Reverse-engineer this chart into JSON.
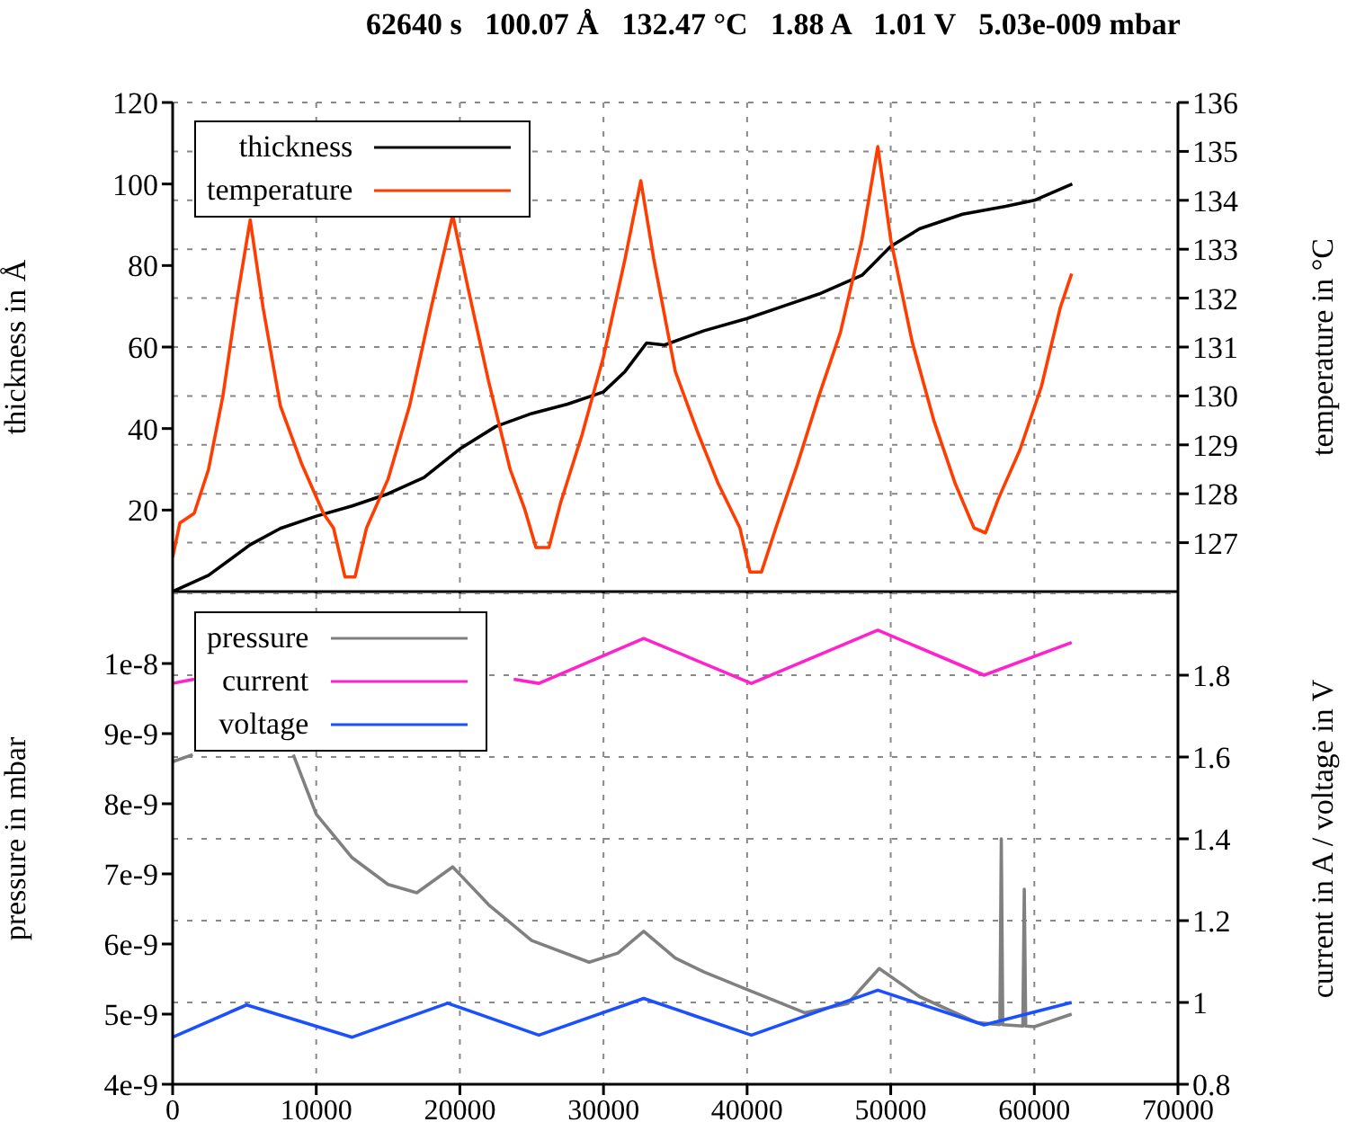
{
  "chart_data": [
    {
      "type": "line",
      "title": "62640 s   100.07 Å   132.47 °C   1.88 A   1.01 V   5.03e-009 mbar",
      "ylabel": "thickness in Å",
      "y2label": "temperature in °C",
      "xlim": [
        0,
        70000
      ],
      "xticks": [
        0,
        10000,
        20000,
        30000,
        40000,
        50000,
        60000,
        70000
      ],
      "ylim": [
        0,
        120
      ],
      "yticks": [
        20,
        40,
        60,
        80,
        100,
        120
      ],
      "y2lim": [
        126,
        136
      ],
      "y2ticks": [
        127,
        128,
        129,
        130,
        131,
        132,
        133,
        134,
        135,
        136
      ],
      "grid": true,
      "legend": "top left",
      "tick_labels": "y",
      "series": [
        {
          "name": "thickness",
          "color": "#000000",
          "x": [
            0,
            2500,
            5400,
            7500,
            10000,
            12500,
            15000,
            17500,
            20000,
            22500,
            25000,
            27500,
            30000,
            31500,
            33000,
            34250,
            37000,
            40000,
            42500,
            45000,
            48000,
            50000,
            52000,
            55000,
            58000,
            60000,
            62640
          ],
          "values": [
            0,
            4,
            11.5,
            15.5,
            18.5,
            21,
            24,
            28,
            35,
            40.5,
            43.7,
            46,
            49,
            54,
            61,
            60.5,
            64,
            67,
            70,
            73,
            77.6,
            84.7,
            89,
            92.6,
            94.5,
            96,
            100
          ]
        },
        {
          "name": "temperature",
          "color": "#ff3d00",
          "axis": "y2",
          "x": [
            0,
            500,
            1500,
            2500,
            3500,
            4500,
            5400,
            6300,
            7500,
            9000,
            10500,
            11200,
            12000,
            12700,
            13500,
            15000,
            16500,
            18000,
            19500,
            20500,
            22000,
            23500,
            24500,
            25300,
            26200,
            27000,
            28500,
            30000,
            31500,
            32600,
            33500,
            35000,
            36500,
            38000,
            39500,
            40200,
            41000,
            42000,
            43500,
            45000,
            46500,
            48000,
            49100,
            50000,
            51500,
            53000,
            54500,
            55800,
            56600,
            57500,
            59000,
            60500,
            61800,
            62600
          ],
          "values": [
            126.7,
            127.4,
            127.6,
            128.5,
            130,
            132,
            133.6,
            131.8,
            129.8,
            128.6,
            127.6,
            127.3,
            126.3,
            126.3,
            127.3,
            128.3,
            129.8,
            131.8,
            133.7,
            132.3,
            130.3,
            128.5,
            127.7,
            126.9,
            126.9,
            127.8,
            129.2,
            130.8,
            132.8,
            134.4,
            132.8,
            130.5,
            129.3,
            128.2,
            127.3,
            126.4,
            126.4,
            127.3,
            128.6,
            130,
            131.3,
            133.2,
            135.1,
            133.2,
            131.1,
            129.5,
            128.2,
            127.3,
            127.2,
            127.9,
            128.9,
            130.2,
            131.8,
            132.5
          ]
        }
      ]
    },
    {
      "type": "line",
      "ylabel": "pressure in mbar",
      "y2label": "current in A / voltage in V",
      "xlim": [
        0,
        70000
      ],
      "xticks": [
        0,
        10000,
        20000,
        30000,
        40000,
        50000,
        60000,
        70000
      ],
      "ylim": [
        4e-09,
        1.1e-08
      ],
      "yticks": [
        {
          "value": 4e-09,
          "label": "4e-9"
        },
        {
          "value": 5e-09,
          "label": "5e-9"
        },
        {
          "value": 6e-09,
          "label": "6e-9"
        },
        {
          "value": 7e-09,
          "label": "7e-9"
        },
        {
          "value": 8e-09,
          "label": "8e-9"
        },
        {
          "value": 9e-09,
          "label": "9e-9"
        },
        {
          "value": 1e-08,
          "label": "1e-8"
        }
      ],
      "y2lim": [
        0.8,
        2.0
      ],
      "y2ticks": [
        0.8,
        1,
        1.2,
        1.4,
        1.6,
        1.8
      ],
      "grid": true,
      "legend": "top left",
      "series": [
        {
          "name": "pressure",
          "color": "#808080",
          "x": [
            0,
            1400,
            1500,
            8400,
            10000,
            12500,
            15000,
            17000,
            19500,
            22000,
            25000,
            29000,
            31000,
            32800,
            35000,
            37000,
            40000,
            44000,
            47000,
            49200,
            52000,
            56000,
            57600,
            57700,
            57800,
            59200,
            59300,
            59400,
            60000,
            62600
          ],
          "values": [
            8.6e-09,
            8.7e-09,
            null,
            8.7e-09,
            7.85e-09,
            7.23e-09,
            6.85e-09,
            6.73e-09,
            7.1e-09,
            6.56e-09,
            6.05e-09,
            5.74e-09,
            5.87e-09,
            6.18e-09,
            5.8e-09,
            5.6e-09,
            5.35e-09,
            5.02e-09,
            5.15e-09,
            5.65e-09,
            5.25e-09,
            4.88e-09,
            4.85e-09,
            7.5e-09,
            4.85e-09,
            4.83e-09,
            6.78e-09,
            4.83e-09,
            4.82e-09,
            5e-09
          ]
        },
        {
          "name": "current",
          "color": "#ff22cc",
          "axis": "y2",
          "x": [
            0,
            1500,
            3000,
            23750,
            25500,
            32800,
            40300,
            49100,
            56500,
            62600
          ],
          "values": [
            1.78,
            1.79,
            null,
            1.79,
            1.78,
            1.89,
            1.78,
            1.91,
            1.8,
            1.88
          ]
        },
        {
          "name": "voltage",
          "color": "#1a50ff",
          "axis": "y2",
          "x": [
            0,
            5150,
            12500,
            19150,
            25500,
            32800,
            40300,
            49100,
            56500,
            62600
          ],
          "values": [
            0.915,
            0.994,
            0.915,
            0.998,
            0.92,
            1.01,
            0.92,
            1.03,
            0.945,
            1.0
          ]
        }
      ]
    }
  ]
}
